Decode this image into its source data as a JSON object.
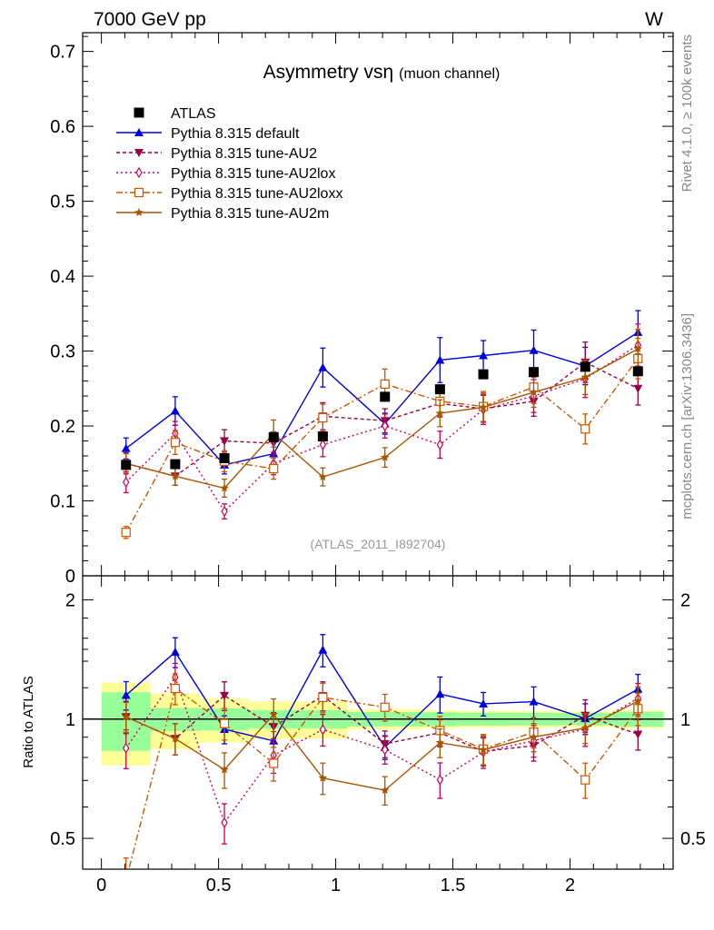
{
  "header": {
    "left": "7000 GeV pp",
    "right": "W"
  },
  "side_labels": {
    "rivet": "Rivet 4.1.0, ≥ 100k events",
    "mcplots": "mcplots.cern.ch [arXiv:1306.3436]"
  },
  "chart_data": {
    "type": "line",
    "title": "Asymmetry vsη",
    "subtitle": "(muon channel)",
    "watermark": "(ATLAS_2011_I892704)",
    "xlabel": "",
    "ylabel": "",
    "ratio_ylabel": "Ratio to ATLAS",
    "xlim": [
      -0.08,
      2.44
    ],
    "ylim": [
      0,
      0.725
    ],
    "ratio_ylim": [
      0.418,
      2.3
    ],
    "x_ticks": [
      0,
      0.5,
      1,
      1.5,
      2
    ],
    "x_tick_labels": [
      "0",
      "0.5",
      "1",
      "1.5",
      "2"
    ],
    "y_ticks": [
      0,
      0.1,
      0.2,
      0.3,
      0.4,
      0.5,
      0.6,
      0.7
    ],
    "y_tick_labels": [
      "0",
      "0.1",
      "0.2",
      "0.3",
      "0.4",
      "0.5",
      "0.6",
      "0.7"
    ],
    "ratio_ticks": [
      0.5,
      1,
      2
    ],
    "ratio_tick_labels": [
      "0.5",
      "1",
      "2"
    ],
    "legend_position": "top-left",
    "bins": [
      [
        0,
        0.21
      ],
      [
        0.21,
        0.42
      ],
      [
        0.42,
        0.63
      ],
      [
        0.63,
        0.84
      ],
      [
        0.84,
        1.05
      ],
      [
        1.05,
        1.37
      ],
      [
        1.37,
        1.52
      ],
      [
        1.52,
        1.74
      ],
      [
        1.74,
        1.95
      ],
      [
        1.95,
        2.18
      ],
      [
        2.18,
        2.4
      ]
    ],
    "x": [
      0.105,
      0.315,
      0.525,
      0.735,
      0.945,
      1.21,
      1.445,
      1.63,
      1.845,
      2.065,
      2.29
    ],
    "data": {
      "name": "ATLAS",
      "values": [
        0.148,
        0.149,
        0.157,
        0.185,
        0.186,
        0.239,
        0.249,
        0.269,
        0.272,
        0.279,
        0.273
      ],
      "band_stat": [
        0.025,
        0.01,
        0.01,
        0.01,
        0.01,
        0.01,
        0.01,
        0.01,
        0.01,
        0.01,
        0.012
      ],
      "band_total": [
        0.035,
        0.024,
        0.02,
        0.02,
        0.02,
        0.014,
        0.013,
        0.013,
        0.013,
        0.013,
        0.014
      ]
    },
    "series": [
      {
        "name": "Pythia 8.315 default",
        "color": "#0000dd",
        "dash": "",
        "marker": "triangle-up",
        "values": [
          0.17,
          0.22,
          0.148,
          0.163,
          0.278,
          0.203,
          0.288,
          0.294,
          0.301,
          0.28,
          0.325
        ],
        "errors": [
          0.014,
          0.019,
          0.012,
          0.014,
          0.026,
          0.014,
          0.03,
          0.02,
          0.027,
          0.025,
          0.029
        ]
      },
      {
        "name": "Pythia 8.315 tune-AU2",
        "color": "#990044",
        "dash": "4,3",
        "marker": "triangle-down",
        "values": [
          0.15,
          0.133,
          0.18,
          0.177,
          0.213,
          0.207,
          0.23,
          0.223,
          0.233,
          0.285,
          0.25
        ],
        "errors": [
          0.014,
          0.012,
          0.015,
          0.015,
          0.018,
          0.016,
          0.018,
          0.018,
          0.02,
          0.027,
          0.022
        ]
      },
      {
        "name": "Pythia 8.315 tune-AU2lox",
        "color": "#cc0055",
        "dash": "2,3",
        "marker": "diamond",
        "values": [
          0.125,
          0.19,
          0.086,
          0.15,
          0.175,
          0.2,
          0.175,
          0.222,
          0.24,
          0.263,
          0.308
        ],
        "errors": [
          0.014,
          0.016,
          0.01,
          0.015,
          0.016,
          0.016,
          0.018,
          0.02,
          0.022,
          0.025,
          0.028
        ]
      },
      {
        "name": "Pythia 8.315 tune-AU2loxx",
        "color": "#cc5500",
        "dash": "7,3,2,3",
        "marker": "square-open",
        "values": [
          0.058,
          0.178,
          0.153,
          0.143,
          0.211,
          0.256,
          0.233,
          0.226,
          0.252,
          0.196,
          0.29
        ],
        "errors": [
          0.008,
          0.016,
          0.014,
          0.014,
          0.018,
          0.02,
          0.02,
          0.02,
          0.022,
          0.02,
          0.027
        ]
      },
      {
        "name": "Pythia 8.315 tune-AU2m",
        "color": "#aa5500",
        "dash": "",
        "marker": "star",
        "values": [
          0.15,
          0.133,
          0.117,
          0.19,
          0.132,
          0.158,
          0.217,
          0.225,
          0.245,
          0.265,
          0.303
        ],
        "errors": [
          0.013,
          0.012,
          0.012,
          0.018,
          0.012,
          0.013,
          0.018,
          0.019,
          0.02,
          0.023,
          0.026
        ]
      }
    ]
  }
}
